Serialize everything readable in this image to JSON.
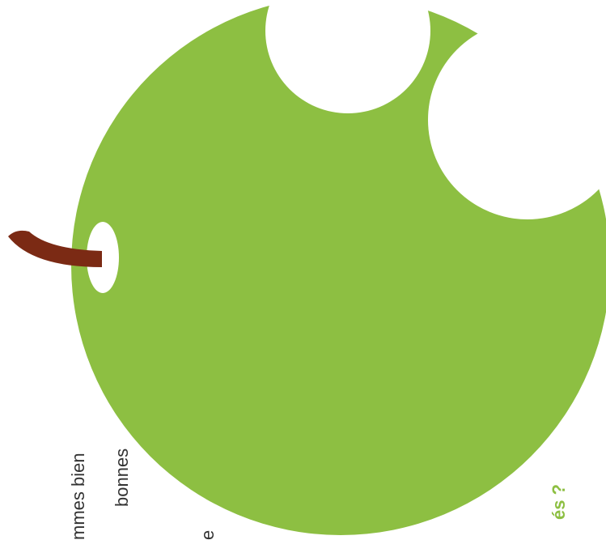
{
  "texts": [
    {
      "text": "mmes bien"
    },
    {
      "text": "bonnes"
    },
    {
      "text": "e"
    },
    {
      "text": "és ?"
    }
  ]
}
